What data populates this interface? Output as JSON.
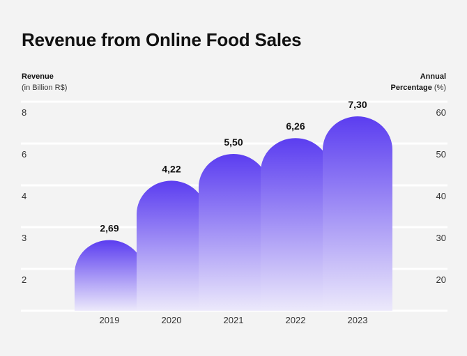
{
  "chart_data": {
    "type": "bar",
    "title": "Revenue from Online Food Sales",
    "left_axis": {
      "label": "Revenue",
      "sublabel": "(in Billion R$)",
      "ticks": [
        "8",
        "6",
        "4",
        "3",
        "2"
      ]
    },
    "right_axis": {
      "label_line1": "Annual",
      "label_line2": "Percentage",
      "unit": "(%)",
      "ticks": [
        "60",
        "50",
        "40",
        "30",
        "20"
      ]
    },
    "categories": [
      "2019",
      "2020",
      "2021",
      "2022",
      "2023"
    ],
    "values": [
      2.69,
      4.22,
      5.5,
      6.26,
      7.3
    ],
    "value_labels": [
      "2,69",
      "4,22",
      "5,50",
      "6,26",
      "7,30"
    ],
    "bar_color_top": "#5b3df0",
    "bar_color_bottom": "#ece9fb",
    "gridlines": true,
    "legend": "none"
  }
}
